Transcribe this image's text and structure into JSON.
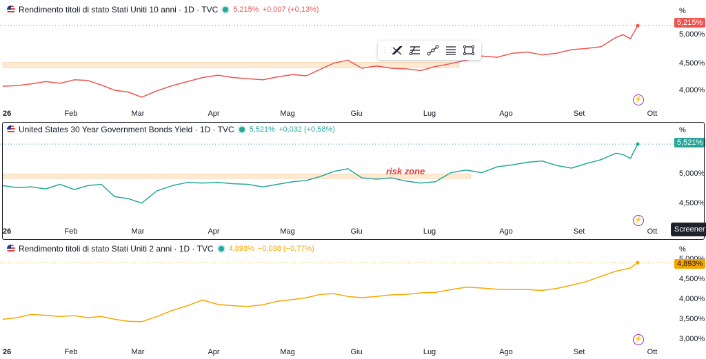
{
  "x_axis_labels": [
    "26",
    "Feb",
    "Mar",
    "Apr",
    "Mag",
    "Giu",
    "Lug",
    "Ago",
    "Set",
    "Ott"
  ],
  "annotation_text": "risk zone",
  "screener_label": "Screener",
  "colors": {
    "red": "#ef5350",
    "teal": "#26a69a",
    "orange": "#f7a600",
    "zone": "#fde2c4"
  },
  "toolbar_icons": [
    "drag-handle-icon",
    "cross-lines-icon",
    "fib-retracement-icon",
    "trend-line-icon",
    "parallel-channel-icon",
    "rectangle-icon"
  ],
  "chart_data": [
    {
      "type": "line",
      "header": {
        "title": "Rendimento titoli di stato Stati Uniti 10 anni · 1D · TVC",
        "value": "5,215%",
        "change": "+0,007 (+0,13%)"
      },
      "unit_label": "%",
      "price_badge": "5,215%",
      "y_ticks": [
        "5,000%",
        "4,500%",
        "4,000%"
      ],
      "ylim": [
        3.85,
        5.42
      ],
      "color": "#ef5350",
      "zone": {
        "from_month": 0.0,
        "to_month": 6.35,
        "low": 4.49,
        "high": 4.58
      },
      "x": [
        0,
        0.2,
        0.4,
        0.6,
        0.8,
        1.0,
        1.2,
        1.4,
        1.6,
        1.8,
        2.0,
        2.2,
        2.4,
        2.6,
        2.8,
        3.0,
        3.2,
        3.4,
        3.6,
        3.8,
        4.0,
        4.2,
        4.4,
        4.6,
        4.8,
        5.0,
        5.2,
        5.4,
        5.6,
        5.8,
        6.0,
        6.2,
        6.4,
        6.6,
        6.8,
        7.0,
        7.2,
        7.4,
        7.6,
        7.8,
        8.0,
        8.2,
        8.4,
        8.5,
        8.6,
        8.7
      ],
      "y": [
        4.17,
        4.18,
        4.21,
        4.25,
        4.22,
        4.28,
        4.27,
        4.19,
        4.1,
        4.07,
        3.98,
        4.09,
        4.18,
        4.25,
        4.32,
        4.36,
        4.32,
        4.3,
        4.28,
        4.33,
        4.37,
        4.35,
        4.46,
        4.57,
        4.62,
        4.48,
        4.52,
        4.48,
        4.47,
        4.44,
        4.51,
        4.56,
        4.62,
        4.69,
        4.67,
        4.74,
        4.76,
        4.71,
        4.74,
        4.8,
        4.82,
        4.85,
        5.01,
        5.06,
        4.99,
        5.215
      ]
    },
    {
      "type": "line",
      "header": {
        "title": "United States 30 Year Government Bonds Yield · 1D · TVC",
        "value": "5,521%",
        "change": "+0,032 (+0,58%)"
      },
      "unit_label": "%",
      "price_badge": "5,521%",
      "y_ticks": [
        "5,000%",
        "4,500%"
      ],
      "ylim": [
        4.3,
        5.66
      ],
      "color": "#26a69a",
      "zone": {
        "from_month": 0.0,
        "to_month": 6.5,
        "low": 4.99,
        "high": 5.06
      },
      "x": [
        0,
        0.2,
        0.4,
        0.6,
        0.8,
        1.0,
        1.2,
        1.4,
        1.6,
        1.8,
        2.0,
        2.2,
        2.4,
        2.6,
        2.8,
        3.0,
        3.2,
        3.4,
        3.6,
        3.8,
        4.0,
        4.2,
        4.4,
        4.6,
        4.8,
        5.0,
        5.2,
        5.4,
        5.6,
        5.8,
        6.0,
        6.2,
        6.4,
        6.6,
        6.8,
        7.0,
        7.2,
        7.4,
        7.6,
        7.8,
        8.0,
        8.2,
        8.4,
        8.5,
        8.6,
        8.7
      ],
      "y": [
        4.88,
        4.85,
        4.86,
        4.83,
        4.9,
        4.82,
        4.88,
        4.9,
        4.71,
        4.68,
        4.61,
        4.8,
        4.88,
        4.93,
        4.92,
        4.93,
        4.91,
        4.9,
        4.86,
        4.9,
        4.94,
        4.96,
        5.02,
        5.1,
        5.14,
        5.0,
        4.98,
        5.0,
        4.95,
        4.92,
        4.94,
        5.08,
        5.12,
        5.08,
        5.17,
        5.2,
        5.24,
        5.26,
        5.19,
        5.15,
        5.22,
        5.28,
        5.38,
        5.36,
        5.3,
        5.521
      ]
    },
    {
      "type": "line",
      "header": {
        "title": "Rendimento titoli di stato Stati Uniti 2 anni · 1D · TVC",
        "value": "4,893%",
        "change": "−0,038 (−0,77%)"
      },
      "unit_label": "%",
      "price_badge": "4,893%",
      "y_ticks": [
        "5,000%",
        "4,500%",
        "4,000%",
        "3,500%",
        "3,000%"
      ],
      "ylim": [
        2.85,
        5.12
      ],
      "color": "#f7a600",
      "x": [
        0,
        0.2,
        0.4,
        0.6,
        0.8,
        1.0,
        1.2,
        1.4,
        1.6,
        1.8,
        2.0,
        2.2,
        2.4,
        2.6,
        2.8,
        3.0,
        3.2,
        3.4,
        3.6,
        3.8,
        4.0,
        4.2,
        4.4,
        4.6,
        4.8,
        5.0,
        5.2,
        5.4,
        5.6,
        5.8,
        6.0,
        6.2,
        6.4,
        6.6,
        6.8,
        7.0,
        7.2,
        7.4,
        7.6,
        7.8,
        8.0,
        8.2,
        8.4,
        8.5,
        8.6,
        8.7
      ],
      "y": [
        3.48,
        3.52,
        3.6,
        3.58,
        3.55,
        3.57,
        3.52,
        3.55,
        3.48,
        3.43,
        3.42,
        3.55,
        3.7,
        3.82,
        3.96,
        3.85,
        3.82,
        3.8,
        3.84,
        3.93,
        3.97,
        4.02,
        4.1,
        4.12,
        4.05,
        4.02,
        4.05,
        4.09,
        4.1,
        4.14,
        4.15,
        4.22,
        4.28,
        4.26,
        4.23,
        4.22,
        4.22,
        4.2,
        4.25,
        4.33,
        4.42,
        4.55,
        4.68,
        4.72,
        4.76,
        4.893
      ]
    }
  ]
}
